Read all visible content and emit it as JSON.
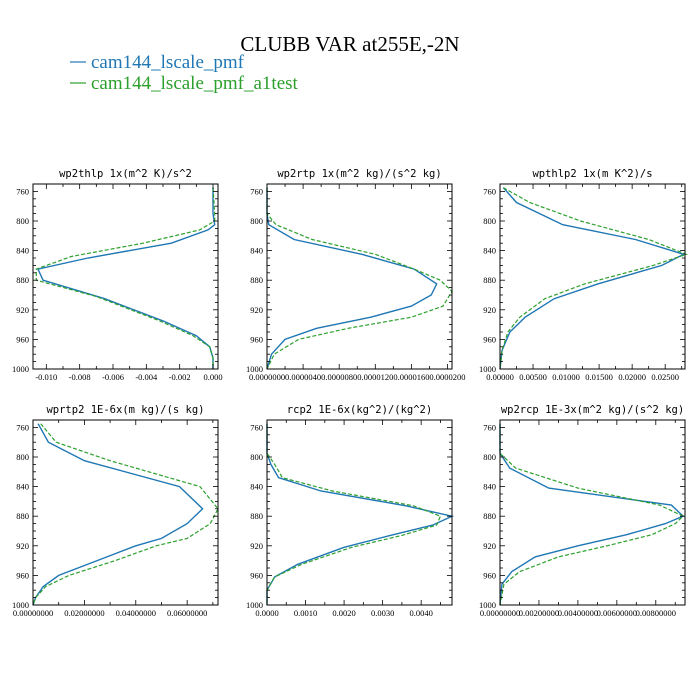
{
  "figure": {
    "title": "CLUBB VAR at255E,-2N",
    "legend": [
      {
        "label": "cam144_lscale_pmf",
        "color": "#1f77b4",
        "dash": "solid"
      },
      {
        "label": "cam144_lscale_pmf_a1test",
        "color": "#2ca02c",
        "dash": "dashed"
      }
    ]
  },
  "chart_data": [
    {
      "type": "line",
      "title": "wp2thlp  1x(m^2 K)/s^2",
      "ylim": [
        1000,
        750
      ],
      "yticks": [
        760,
        800,
        840,
        880,
        920,
        960,
        1000
      ],
      "xlim": [
        -0.0108,
        0.0003
      ],
      "xticks": [
        -0.01,
        -0.008,
        -0.006,
        -0.004,
        -0.002,
        0.0
      ],
      "xtick_labels": [
        "-0.010",
        "-0.008",
        "-0.006",
        "-0.004",
        "-0.002",
        "0.000"
      ],
      "series": [
        {
          "name": "cam144_lscale_pmf",
          "x": [
            0.0,
            0.0,
            0.0001,
            -0.0003,
            -0.0025,
            -0.0075,
            -0.0105,
            -0.0102,
            -0.0065,
            -0.003,
            -0.001,
            -0.0002,
            0.0,
            0.0
          ],
          "y": [
            755,
            790,
            805,
            812,
            830,
            850,
            865,
            880,
            905,
            935,
            955,
            970,
            985,
            1000
          ]
        },
        {
          "name": "cam144_lscale_pmf_a1test",
          "x": [
            0.0,
            0.0001,
            0.0001,
            -0.0008,
            -0.0042,
            -0.0085,
            -0.0106,
            -0.0106,
            -0.007,
            -0.0032,
            -0.0012,
            -0.0002,
            0.0,
            0.0
          ],
          "y": [
            755,
            790,
            800,
            812,
            830,
            848,
            865,
            880,
            902,
            935,
            955,
            970,
            985,
            1000
          ]
        }
      ]
    },
    {
      "type": "line",
      "title": "wp2rtp  1x(m^2 kg)/(s^2 kg)",
      "ylim": [
        1000,
        750
      ],
      "yticks": [
        760,
        800,
        840,
        880,
        920,
        960,
        1000
      ],
      "xlim": [
        0.0,
        2.05e-05
      ],
      "xticks": [
        0.0,
        4e-06,
        8e-06,
        1.2e-05,
        1.6e-05,
        2e-05
      ],
      "xtick_labels": [
        "0.0000000",
        "0.0000040",
        "0.0000080",
        "0.0000120",
        "0.0000160",
        "0.0000200"
      ],
      "series": [
        {
          "name": "cam144_lscale_pmf",
          "x": [
            0.0,
            0.0,
            2e-07,
            3e-06,
            1.05e-05,
            1.63e-05,
            1.88e-05,
            1.82e-05,
            1.6e-05,
            1.15e-05,
            5.5e-06,
            2e-06,
            5e-07,
            0.0
          ],
          "y": [
            755,
            790,
            805,
            825,
            845,
            865,
            885,
            900,
            915,
            930,
            945,
            960,
            980,
            1000
          ]
        },
        {
          "name": "cam144_lscale_pmf_a1test",
          "x": [
            0.0,
            0.0,
            1e-06,
            5e-06,
            1.2e-05,
            1.63e-05,
            1.92e-05,
            2.05e-05,
            1.95e-05,
            1.6e-05,
            9e-06,
            3.5e-06,
            8e-07,
            0.0
          ],
          "y": [
            755,
            790,
            805,
            825,
            845,
            865,
            880,
            895,
            915,
            930,
            945,
            960,
            980,
            1000
          ]
        }
      ]
    },
    {
      "type": "line",
      "title": "wpthlp2  1x(m K^2)/s",
      "ylim": [
        1000,
        750
      ],
      "yticks": [
        760,
        800,
        840,
        880,
        920,
        960,
        1000
      ],
      "xlim": [
        0.0,
        0.028
      ],
      "xticks": [
        0.0,
        0.005,
        0.01,
        0.015,
        0.02,
        0.025
      ],
      "xtick_labels": [
        "0.00000",
        "0.00500",
        "0.01000",
        "0.01500",
        "0.02000",
        "0.02500"
      ],
      "series": [
        {
          "name": "cam144_lscale_pmf",
          "x": [
            0.0005,
            0.0025,
            0.0095,
            0.0205,
            0.0278,
            0.0245,
            0.0148,
            0.0082,
            0.0038,
            0.0015,
            0.0003,
            0.0
          ],
          "y": [
            755,
            775,
            805,
            825,
            845,
            860,
            885,
            905,
            930,
            950,
            975,
            1000
          ]
        },
        {
          "name": "cam144_lscale_pmf_a1test",
          "x": [
            0.0005,
            0.0045,
            0.0122,
            0.0225,
            0.0282,
            0.0232,
            0.0128,
            0.0068,
            0.003,
            0.0012,
            0.0003,
            0.0
          ],
          "y": [
            755,
            775,
            800,
            825,
            845,
            860,
            885,
            905,
            930,
            950,
            975,
            1000
          ]
        }
      ]
    },
    {
      "type": "line",
      "title": "wprtp2  1E-6x(m kg)/(s kg)",
      "ylim": [
        1000,
        750
      ],
      "yticks": [
        760,
        800,
        840,
        880,
        920,
        960,
        1000
      ],
      "xlim": [
        0.0,
        0.072
      ],
      "xticks": [
        0.0,
        0.02,
        0.04,
        0.06
      ],
      "xtick_labels": [
        "0.00000000",
        "0.02000000",
        "0.04000000",
        "0.06000000"
      ],
      "series": [
        {
          "name": "cam144_lscale_pmf",
          "x": [
            0.002,
            0.006,
            0.02,
            0.057,
            0.066,
            0.06,
            0.05,
            0.04,
            0.025,
            0.01,
            0.004,
            0.001,
            0.0
          ],
          "y": [
            755,
            780,
            805,
            840,
            870,
            890,
            910,
            920,
            940,
            960,
            975,
            990,
            1000
          ]
        },
        {
          "name": "cam144_lscale_pmf_a1test",
          "x": [
            0.003,
            0.009,
            0.03,
            0.065,
            0.072,
            0.069,
            0.06,
            0.048,
            0.032,
            0.014,
            0.005,
            0.001,
            0.0
          ],
          "y": [
            755,
            780,
            805,
            840,
            870,
            890,
            910,
            920,
            940,
            960,
            975,
            990,
            1000
          ]
        }
      ]
    },
    {
      "type": "line",
      "title": "rcp2  1E-6x(kg^2)/(kg^2)",
      "ylim": [
        1000,
        750
      ],
      "yticks": [
        760,
        800,
        840,
        880,
        920,
        960,
        1000
      ],
      "xlim": [
        0.0,
        0.0048
      ],
      "xticks": [
        0.0,
        0.001,
        0.002,
        0.003,
        0.004
      ],
      "xtick_labels": [
        "0.0000",
        "0.0010",
        "0.0020",
        "0.0030",
        "0.0040"
      ],
      "series": [
        {
          "name": "cam144_lscale_pmf",
          "x": [
            0.0,
            0.0,
            0.0001,
            0.0003,
            0.0014,
            0.0036,
            0.0048,
            0.0043,
            0.0032,
            0.002,
            0.0008,
            0.0002,
            0.0,
            0.0
          ],
          "y": [
            755,
            795,
            810,
            828,
            846,
            866,
            880,
            892,
            906,
            922,
            945,
            962,
            980,
            1000
          ]
        },
        {
          "name": "cam144_lscale_pmf_a1test",
          "x": [
            0.0,
            0.0,
            0.0002,
            0.0004,
            0.0017,
            0.0038,
            0.0045,
            0.0044,
            0.0035,
            0.0022,
            0.0009,
            0.0002,
            0.0,
            0.0
          ],
          "y": [
            755,
            795,
            810,
            828,
            846,
            866,
            880,
            892,
            906,
            922,
            945,
            962,
            980,
            1000
          ]
        }
      ]
    },
    {
      "type": "line",
      "title": "wp2rcp  1E-3x(m^2 kg)/(s^2 kg)",
      "ylim": [
        1000,
        750
      ],
      "yticks": [
        760,
        800,
        840,
        880,
        920,
        960,
        1000
      ],
      "xlim": [
        0.0,
        0.0095
      ],
      "xticks": [
        0.0,
        0.002,
        0.004,
        0.006,
        0.008
      ],
      "xtick_labels": [
        "0.00000000",
        "0.00200000",
        "0.00400000",
        "0.00600000",
        "0.00800000"
      ],
      "series": [
        {
          "name": "cam144_lscale_pmf",
          "x": [
            0.0,
            0.0,
            0.0005,
            0.0025,
            0.0088,
            0.0094,
            0.0085,
            0.0065,
            0.004,
            0.0018,
            0.0006,
            0.0001,
            0.0
          ],
          "y": [
            755,
            795,
            815,
            842,
            865,
            880,
            890,
            905,
            920,
            935,
            955,
            972,
            1000
          ]
        },
        {
          "name": "cam144_lscale_pmf_a1test",
          "x": [
            0.0,
            0.0,
            0.0008,
            0.004,
            0.0082,
            0.0094,
            0.009,
            0.0078,
            0.0055,
            0.003,
            0.001,
            0.0002,
            0.0
          ],
          "y": [
            755,
            795,
            815,
            842,
            865,
            880,
            890,
            905,
            920,
            935,
            955,
            972,
            1000
          ]
        }
      ]
    }
  ]
}
